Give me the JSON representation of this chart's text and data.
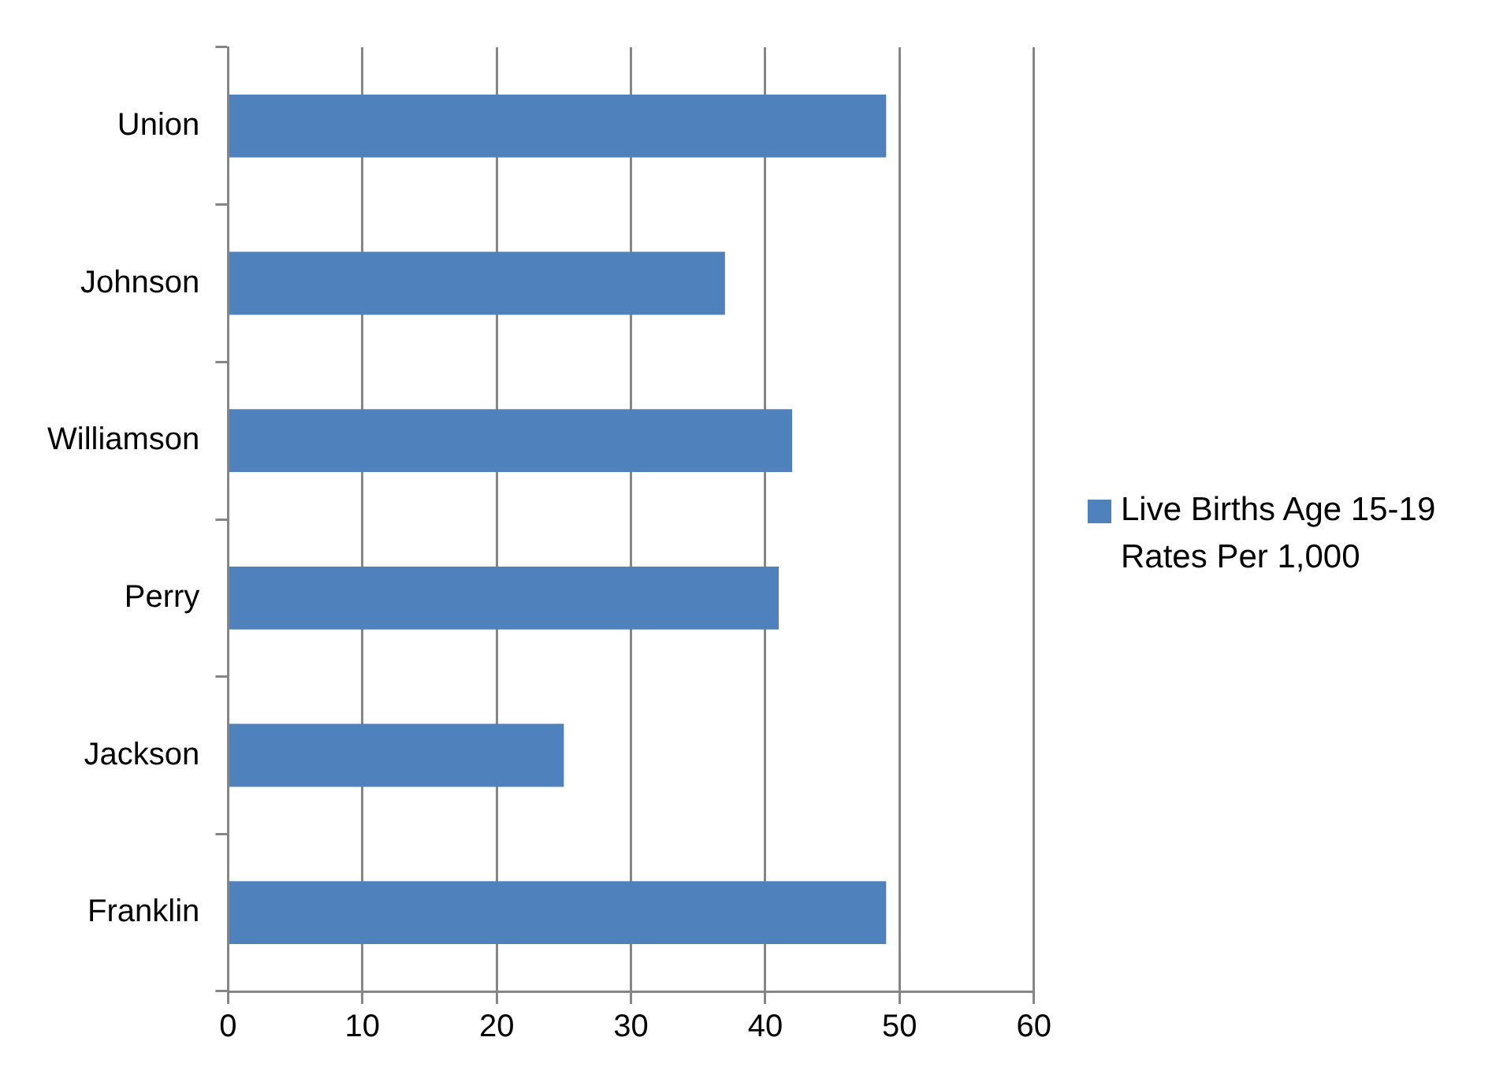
{
  "chart_data": {
    "type": "bar",
    "orientation": "horizontal",
    "categories": [
      "Union",
      "Johnson",
      "Williamson",
      "Perry",
      "Jackson",
      "Franklin"
    ],
    "series": [
      {
        "name": "Live Births Age 15-19 Rates Per 1,000",
        "color": "#4f81bd",
        "values": [
          49,
          37,
          42,
          41,
          25,
          49
        ]
      }
    ],
    "xlim": [
      0,
      60
    ],
    "xticks": [
      0,
      10,
      20,
      30,
      40,
      50,
      60
    ],
    "grid": "x",
    "legend": "right"
  }
}
